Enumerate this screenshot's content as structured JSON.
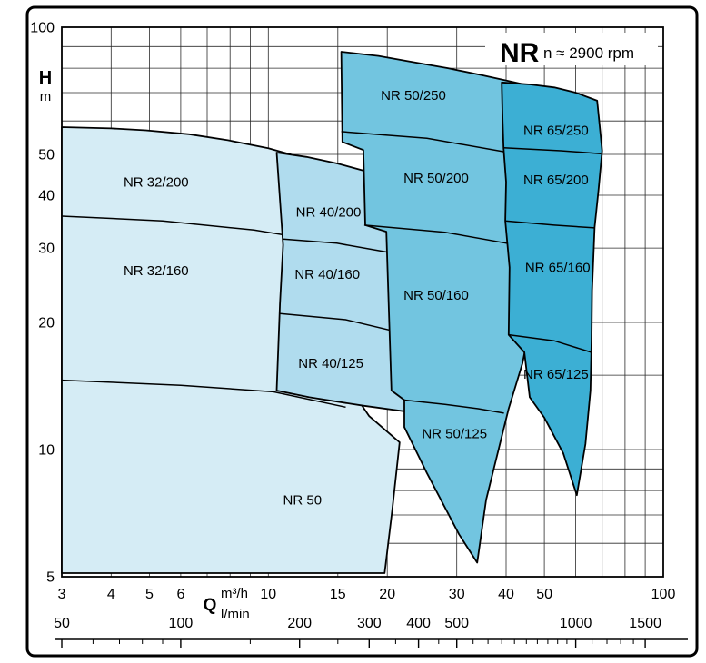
{
  "title": {
    "model": "NR",
    "speed": "n ≈ 2900 rpm"
  },
  "axis_labels": {
    "y_symbol": "H",
    "y_unit": "m",
    "x_symbol": "Q",
    "x_unit_primary": "m³/h",
    "x_unit_secondary": "l/min"
  },
  "chart_data": {
    "type": "area",
    "title": "NR n ≈ 2900 rpm",
    "xlabel": "Q (m³/h, l/min)",
    "ylabel": "H (m)",
    "x_scale": "log",
    "y_scale": "log",
    "x_range_m3h": [
      3,
      100
    ],
    "y_range_m": [
      5,
      100
    ],
    "grid": {
      "x_m3h": [
        3,
        4,
        5,
        6,
        7,
        8,
        9,
        10,
        15,
        20,
        30,
        40,
        50,
        60,
        70,
        80,
        90,
        100
      ],
      "y_m": [
        5,
        6,
        7,
        8,
        9,
        10,
        15,
        20,
        30,
        40,
        50,
        60,
        70,
        80,
        90,
        100
      ]
    },
    "x_axis": {
      "tick_labels_m3h": [
        3,
        4,
        5,
        6,
        10,
        15,
        20,
        30,
        40,
        50,
        100
      ],
      "tick_labels_lmin": [
        50,
        100,
        200,
        300,
        400,
        500,
        1000,
        1500
      ]
    },
    "y_axis": {
      "tick_labels": [
        100,
        50,
        40,
        30,
        20,
        10,
        5
      ]
    },
    "ruler_lmin": {
      "ticks": [
        50,
        60,
        70,
        80,
        90,
        100,
        150,
        200,
        250,
        300,
        350,
        400,
        450,
        500,
        550,
        600,
        650,
        700,
        750,
        800,
        850,
        900,
        950,
        1000,
        1100,
        1200,
        1300,
        1400,
        1500
      ],
      "major": [
        50,
        100,
        200,
        300,
        400,
        500,
        1000,
        1500
      ]
    },
    "families": [
      {
        "name": "NR 32",
        "color": "#d5ecf5",
        "outline": [
          [
            3,
            58
          ],
          [
            4,
            57.6
          ],
          [
            4.9,
            57
          ],
          [
            6.3,
            55.8
          ],
          [
            7.9,
            54
          ],
          [
            10,
            51.7
          ],
          [
            12.3,
            49
          ],
          [
            12.9,
            42
          ],
          [
            13.4,
            35
          ],
          [
            14.1,
            22.6
          ],
          [
            15.7,
            14.5
          ],
          [
            18,
            12
          ],
          [
            21.5,
            10.4
          ],
          [
            20.6,
            7.2
          ],
          [
            19.7,
            5.1
          ],
          [
            3,
            5.1
          ]
        ],
        "dividers": [
          [
            [
              3,
              35.7
            ],
            [
              5.4,
              34.8
            ],
            [
              9.2,
              33.1
            ],
            [
              13,
              31.4
            ]
          ],
          [
            [
              3,
              14.6
            ],
            [
              6,
              14.2
            ],
            [
              10.3,
              13.7
            ],
            [
              15.7,
              12.6
            ]
          ]
        ],
        "labels": [
          {
            "text": "NR 32/200",
            "q": 5.2,
            "h": 43
          },
          {
            "text": "NR 32/160",
            "q": 5.2,
            "h": 26.5
          }
        ]
      },
      {
        "name": "NR 40",
        "color": "#b0dcee",
        "outline": [
          [
            10.5,
            50.5
          ],
          [
            12.5,
            49.3
          ],
          [
            14.9,
            47.6
          ],
          [
            17.8,
            45.5
          ],
          [
            21.5,
            43
          ],
          [
            23.3,
            36
          ],
          [
            24.6,
            26.3
          ],
          [
            25.2,
            17.7
          ],
          [
            23.9,
            12.2
          ],
          [
            17.4,
            12.7
          ],
          [
            12.7,
            13.3
          ],
          [
            10.5,
            13.8
          ],
          [
            10.7,
            22.1
          ],
          [
            10.9,
            30.5
          ]
        ],
        "dividers": [
          [
            [
              10.9,
              31.5
            ],
            [
              14.9,
              30.8
            ],
            [
              21.5,
              29
            ],
            [
              24.6,
              27.5
            ]
          ],
          [
            [
              10.7,
              21
            ],
            [
              15.7,
              20.3
            ],
            [
              23.3,
              18.6
            ],
            [
              25.1,
              18
            ]
          ]
        ],
        "labels": [
          {
            "text": "NR 40/200",
            "q": 14.2,
            "h": 36.5
          },
          {
            "text": "NR 40/160",
            "q": 14.1,
            "h": 26
          },
          {
            "text": "NR 40/125",
            "q": 14.4,
            "h": 16
          }
        ]
      },
      {
        "name": "NR 50",
        "color": "#72c5e0",
        "outline": [
          [
            15.3,
            87.5
          ],
          [
            19,
            85.5
          ],
          [
            22.7,
            83
          ],
          [
            28.5,
            80
          ],
          [
            34.7,
            77
          ],
          [
            40,
            74.8
          ],
          [
            46.4,
            72.5
          ],
          [
            49,
            55
          ],
          [
            50,
            43
          ],
          [
            49,
            30
          ],
          [
            46.4,
            20.5
          ],
          [
            44,
            16
          ],
          [
            40.6,
            12.5
          ],
          [
            35.6,
            7.6
          ],
          [
            33.8,
            5.4
          ],
          [
            30.4,
            6.3
          ],
          [
            25.2,
            8.8
          ],
          [
            22.1,
            11.3
          ],
          [
            22.1,
            13.1
          ],
          [
            20.5,
            13.8
          ],
          [
            19.9,
            32.8
          ],
          [
            17.6,
            34
          ],
          [
            17.4,
            51.2
          ],
          [
            15.4,
            53.5
          ]
        ],
        "dividers": [
          [
            [
              15.3,
              56.6
            ],
            [
              25.2,
              54.6
            ],
            [
              40.6,
              50.5
            ],
            [
              48.5,
              49.5
            ]
          ],
          [
            [
              17.5,
              34
            ],
            [
              28,
              32.7
            ],
            [
              45.2,
              30.2
            ],
            [
              49,
              29.5
            ]
          ],
          [
            [
              22.1,
              13.1
            ],
            [
              28,
              12.8
            ],
            [
              34,
              12.5
            ],
            [
              39.5,
              12.2
            ]
          ]
        ],
        "labels": [
          {
            "text": "NR 50/250",
            "q": 23.3,
            "h": 69
          },
          {
            "text": "NR 50/200",
            "q": 26.6,
            "h": 44
          },
          {
            "text": "NR 50/160",
            "q": 26.6,
            "h": 23.2
          },
          {
            "text": "NR 50/125",
            "q": 29.6,
            "h": 10.9
          }
        ]
      },
      {
        "name": "NR 65",
        "color": "#3cafd4",
        "outline": [
          [
            39,
            74
          ],
          [
            46,
            73.2
          ],
          [
            53,
            72
          ],
          [
            60,
            70
          ],
          [
            68,
            67
          ],
          [
            70,
            51
          ],
          [
            68.5,
            41
          ],
          [
            67,
            33.6
          ],
          [
            66,
            23.8
          ],
          [
            65.8,
            18
          ],
          [
            65.4,
            13.8
          ],
          [
            63.5,
            10.3
          ],
          [
            60.4,
            7.8
          ],
          [
            55.8,
            9.8
          ],
          [
            50,
            11.9
          ],
          [
            45.9,
            13.3
          ],
          [
            44.5,
            17
          ],
          [
            40.6,
            18.7
          ],
          [
            40.8,
            27
          ],
          [
            39.8,
            34.8
          ],
          [
            40,
            43
          ],
          [
            39.4,
            51.8
          ],
          [
            39.2,
            60
          ]
        ],
        "dividers": [
          [
            [
              39.4,
              51.8
            ],
            [
              55,
              51
            ],
            [
              69.5,
              50.2
            ]
          ],
          [
            [
              39.8,
              34.8
            ],
            [
              52.9,
              34
            ],
            [
              67,
              33.5
            ]
          ],
          [
            [
              40.6,
              18.7
            ],
            [
              52.9,
              18.1
            ],
            [
              65.7,
              17
            ]
          ]
        ],
        "labels": [
          {
            "text": "NR 65/250",
            "q": 53.5,
            "h": 57
          },
          {
            "text": "NR 65/200",
            "q": 53.5,
            "h": 43.5
          },
          {
            "text": "NR 65/160",
            "q": 54,
            "h": 27
          },
          {
            "text": "NR 65/125",
            "q": 53.5,
            "h": 15.1
          }
        ]
      }
    ],
    "extra_labels": [
      {
        "text": "NR 50",
        "q": 12.2,
        "h": 7.6,
        "color": "#e30613"
      }
    ]
  }
}
